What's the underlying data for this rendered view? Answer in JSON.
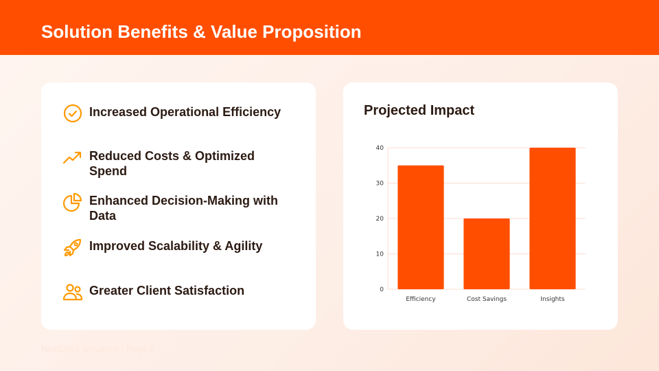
{
  "header": {
    "title": "Solution Benefits & Value Proposition"
  },
  "benefits": [
    {
      "icon": "check-circle-icon",
      "label": "Increased Operational Efficiency"
    },
    {
      "icon": "trending-up-icon",
      "label": "Reduced Costs & Optimized Spend"
    },
    {
      "icon": "pie-chart-icon",
      "label": "Enhanced Decision-Making with Data"
    },
    {
      "icon": "rocket-icon",
      "label": "Improved Scalability & Agility"
    },
    {
      "icon": "users-icon",
      "label": "Greater Client Satisfaction"
    }
  ],
  "chart_card": {
    "title": "Projected Impact"
  },
  "chart_data": {
    "type": "bar",
    "categories": [
      "Efficiency",
      "Cost Savings",
      "Insights"
    ],
    "values": [
      35,
      20,
      40
    ],
    "yticks": [
      0,
      10,
      20,
      30,
      40
    ],
    "ylim": [
      0,
      40
    ],
    "grid": true,
    "bar_color": "#ff4e00"
  },
  "footer": {
    "text": "NextDocs Solutions | Page 5"
  },
  "colors": {
    "accent": "#ff4e00",
    "icon": "#ff9900"
  }
}
